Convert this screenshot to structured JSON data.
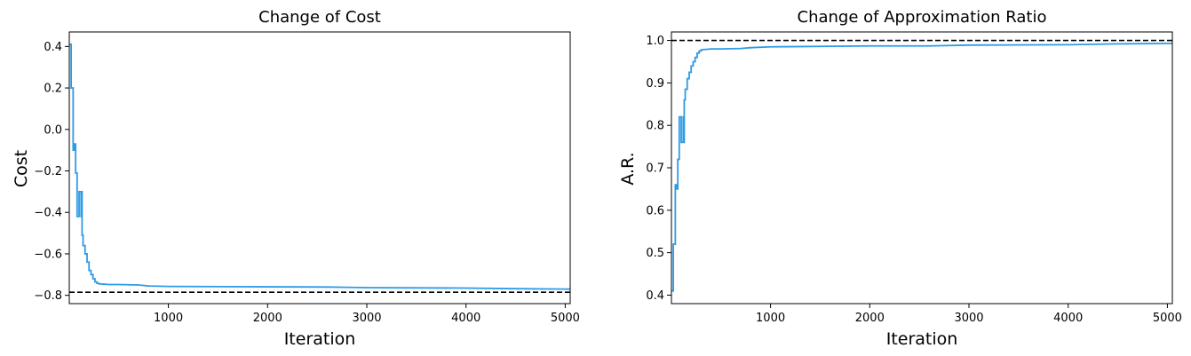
{
  "chart_data": [
    {
      "type": "line",
      "title": "Change of Cost",
      "xlabel": "Iteration",
      "ylabel": "Cost",
      "xlim": [
        1,
        5050
      ],
      "ylim": [
        -0.84,
        0.47
      ],
      "xticks": [
        1000,
        2000,
        3000,
        4000,
        5000
      ],
      "xtick_labels": [
        "1000",
        "2000",
        "3000",
        "4000",
        "5000"
      ],
      "yticks": [
        -0.8,
        -0.6,
        -0.4,
        -0.2,
        0.0,
        0.2,
        0.4
      ],
      "ytick_labels": [
        "−0.8",
        "−0.6",
        "−0.4",
        "−0.2",
        "0.0",
        "0.2",
        "0.4"
      ],
      "grid": false,
      "line_color": "#2e9be6",
      "reference_line": {
        "y": -0.785,
        "style": "dashed",
        "color": "#000000"
      },
      "series": [
        {
          "x": [
            1,
            20,
            20,
            40,
            40,
            55,
            55,
            65,
            65,
            80,
            80,
            100,
            100,
            120,
            120,
            125,
            125,
            130,
            130,
            140,
            140,
            160,
            160,
            180,
            180,
            200,
            200,
            220,
            220,
            240,
            240,
            260,
            260,
            280,
            280,
            300,
            300,
            350,
            400,
            500,
            700,
            800,
            1000,
            2000,
            2600,
            3000,
            4000,
            4500,
            5050
          ],
          "y": [
            0.41,
            0.41,
            0.2,
            0.2,
            -0.1,
            -0.1,
            -0.07,
            -0.07,
            -0.21,
            -0.21,
            -0.42,
            -0.42,
            -0.3,
            -0.3,
            -0.42,
            -0.42,
            -0.3,
            -0.3,
            -0.51,
            -0.51,
            -0.56,
            -0.56,
            -0.6,
            -0.6,
            -0.64,
            -0.64,
            -0.68,
            -0.68,
            -0.7,
            -0.7,
            -0.72,
            -0.72,
            -0.735,
            -0.735,
            -0.742,
            -0.742,
            -0.745,
            -0.746,
            -0.748,
            -0.748,
            -0.75,
            -0.755,
            -0.757,
            -0.759,
            -0.76,
            -0.763,
            -0.765,
            -0.768,
            -0.77
          ]
        }
      ]
    },
    {
      "type": "line",
      "title": "Change of Approximation Ratio",
      "xlabel": "Iteration",
      "ylabel": "A.R.",
      "xlim": [
        1,
        5050
      ],
      "ylim": [
        0.38,
        1.02
      ],
      "xticks": [
        1000,
        2000,
        3000,
        4000,
        5000
      ],
      "xtick_labels": [
        "1000",
        "2000",
        "3000",
        "4000",
        "5000"
      ],
      "yticks": [
        0.4,
        0.5,
        0.6,
        0.7,
        0.8,
        0.9,
        1.0
      ],
      "ytick_labels": [
        "0.4",
        "0.5",
        "0.6",
        "0.7",
        "0.8",
        "0.9",
        "1.0"
      ],
      "grid": false,
      "line_color": "#2e9be6",
      "reference_line": {
        "y": 1.0,
        "style": "dashed",
        "color": "#000000"
      },
      "series": [
        {
          "x": [
            1,
            20,
            20,
            40,
            40,
            55,
            55,
            65,
            65,
            80,
            80,
            100,
            100,
            120,
            120,
            125,
            125,
            130,
            130,
            140,
            140,
            160,
            160,
            180,
            180,
            200,
            200,
            220,
            220,
            240,
            240,
            260,
            260,
            280,
            280,
            300,
            300,
            350,
            400,
            500,
            700,
            800,
            1000,
            2000,
            2600,
            3000,
            4000,
            4500,
            5050
          ],
          "y": [
            0.41,
            0.41,
            0.52,
            0.52,
            0.66,
            0.66,
            0.65,
            0.65,
            0.72,
            0.72,
            0.82,
            0.82,
            0.76,
            0.76,
            0.82,
            0.82,
            0.76,
            0.76,
            0.86,
            0.86,
            0.885,
            0.885,
            0.91,
            0.91,
            0.925,
            0.925,
            0.94,
            0.94,
            0.95,
            0.95,
            0.96,
            0.96,
            0.97,
            0.97,
            0.975,
            0.975,
            0.978,
            0.979,
            0.98,
            0.98,
            0.981,
            0.983,
            0.985,
            0.987,
            0.987,
            0.989,
            0.99,
            0.992,
            0.993
          ]
        }
      ]
    }
  ]
}
